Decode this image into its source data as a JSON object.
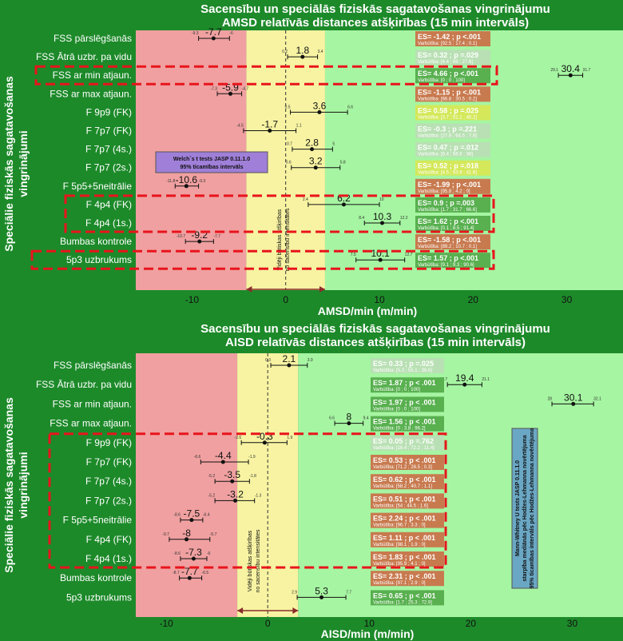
{
  "chart_data": [
    {
      "type": "scatter",
      "title_line1": "Sacensību un speciālās fiziskās sagatavošanas vingrinājumu",
      "title_line2": "AMSD relatīvās distances atšķirības (15 min intervāls)",
      "xlabel": "AMSD/min (m/min)",
      "ylabel_line1": "Speciālie fiziskās sagatavošanas",
      "ylabel_line2": "vingrinājumi",
      "xlim": [
        -16,
        36
      ],
      "xticks": [
        -10,
        0,
        10,
        20,
        30
      ],
      "tick_labels": [
        "-10",
        "0",
        "10",
        "20",
        "30"
      ],
      "zones": [
        {
          "from": -16,
          "to": -4.2,
          "color": "#f0a0a0"
        },
        {
          "from": -4.2,
          "to": 4.2,
          "color": "#f7f3a2"
        },
        {
          "from": 4.2,
          "to": 36,
          "color": "#a6f5a2"
        }
      ],
      "band_text_line1": "Vidēji būtiskas atšķirības",
      "band_text_line2": "no sacensību intensitātes",
      "method_line1": "Welch`s t tests JASP 0.11.1.0",
      "method_line2": "95% ticamības intervāls",
      "categories": [
        "FSS pārslēgšanās",
        "FSS Ātrā uzbr. pa vidu",
        "FSS ar min atjaun.",
        "FSS ar max atjaun.",
        "F 9p9 (FK)",
        "F 7p7 (FK)",
        "F 7p7 (4s.)",
        "F 7p7 (2s.)",
        "F 5p5+5neitrālie",
        "F 4p4 (FK)",
        "F 4p4 (1s.)",
        "Bumbas kontrole",
        "5p3 uzbrukums"
      ],
      "points": [
        {
          "value": -7.7,
          "label": "-7.7",
          "lo": -9.3,
          "hi": -6,
          "lo_label": "-9.3",
          "hi_label": "-6"
        },
        {
          "value": 1.8,
          "label": "1.8",
          "lo": 0.2,
          "hi": 3.4,
          "lo_label": "0.2",
          "hi_label": "3.4"
        },
        {
          "value": 30.4,
          "label": "30.4",
          "lo": 29.1,
          "hi": 31.7,
          "lo_label": "29.1",
          "hi_label": "31.7"
        },
        {
          "value": -5.9,
          "label": "-5.9",
          "lo": -7.3,
          "hi": -4.7,
          "lo_label": "-7.3",
          "hi_label": "-4.7"
        },
        {
          "value": 3.6,
          "label": "3.6",
          "lo": 0.5,
          "hi": 6.6,
          "lo_label": "0.5",
          "hi_label": "6.6"
        },
        {
          "value": -1.7,
          "label": "-1.7",
          "lo": -4.5,
          "hi": 1.1,
          "lo_label": "-4.5",
          "hi_label": "1.1"
        },
        {
          "value": 2.8,
          "label": "2.8",
          "lo": 0.7,
          "hi": 5,
          "lo_label": "0.7",
          "hi_label": "5"
        },
        {
          "value": 3.2,
          "label": "3.2",
          "lo": 0.6,
          "hi": 5.8,
          "lo_label": "0.6",
          "hi_label": "5.8"
        },
        {
          "value": -10.6,
          "label": "-10.6",
          "lo": -11.8,
          "hi": -9.3,
          "lo_label": "-11.8",
          "hi_label": "-9.3"
        },
        {
          "value": 6.2,
          "label": "6.2",
          "lo": 2.4,
          "hi": 10,
          "lo_label": "2.4",
          "hi_label": "10"
        },
        {
          "value": 10.3,
          "label": "10.3",
          "lo": 8.4,
          "hi": 12.2,
          "lo_label": "8.4",
          "hi_label": "12.2"
        },
        {
          "value": -9.2,
          "label": "-9.2",
          "lo": -10.7,
          "hi": -7.7,
          "lo_label": "-10.7",
          "hi_label": "-7.7"
        },
        {
          "value": 10.1,
          "label": "10.1",
          "lo": 7.5,
          "hi": 12.7,
          "lo_label": "7.5",
          "hi_label": "12.7"
        }
      ],
      "es_boxes": [
        {
          "es": "ES= -1.42 ; p <.001",
          "prob": "Varbūtība: [92.5 ; 17.4 ; 0.1]",
          "color": "#c87a4f"
        },
        {
          "es": "ES= 0.32 ; p =.029",
          "prob": "Varbūtība: [6.4 ; 66 ; 27.6]",
          "color": "#b9e0b4"
        },
        {
          "es": "ES= 4.66 ; p <.001",
          "prob": "Varbūtība: [0 ; 0 ; 100]",
          "color": "#58b04f"
        },
        {
          "es": "ES= -1.15 ; p <.001",
          "prob": "Varbūtība: [66.8 ; 30.5 ; 0.2]",
          "color": "#c87a4f"
        },
        {
          "es": "ES= 0.58 ; p =.025",
          "prob": "Varbūtība: [3.7 ; 51.1 ; 45.2]",
          "color": "#d4e85a"
        },
        {
          "es": "ES= -0.3 ; p =.221",
          "prob": "Varbūtība: [27.8 ; 64.5 ; 7.8]",
          "color": "#b9e0b4"
        },
        {
          "es": "ES= 0.47 ; p =.012",
          "prob": "Varbūtība: [6.4 ; 56.6 ; 38]",
          "color": "#b9e0b4"
        },
        {
          "es": "ES= 0.52 ; p =.018",
          "prob": "Varbūtība: [4.5 ; 53.9 ; 41.6]",
          "color": "#d4e85a"
        },
        {
          "es": "ES= -1.99 ; p <.001",
          "prob": "Varbūtība: [95.8 ; 4.2 ; 0]",
          "color": "#c87a4f"
        },
        {
          "es": "ES= 0.9 ; p =.003",
          "prob": "Varbūtība: [1.7 ; 31.7 ; 66.6]",
          "color": "#58b04f"
        },
        {
          "es": "ES= 1.62 ; p <.001",
          "prob": "Varbūtība: [0.1 ; 8.5 ; 91.4]",
          "color": "#58b04f"
        },
        {
          "es": "ES= -1.58 ; p <.001",
          "prob": "Varbūtība: [89.2 ; 10.7 ; 0.1]",
          "color": "#c87a4f"
        },
        {
          "es": "ES= 1.57 ; p <.001",
          "prob": "Varbūtība: [9.1 ; 9.3 ; 90.6]",
          "color": "#58b04f"
        }
      ]
    },
    {
      "type": "scatter",
      "title_line1": "Sacensību un speciālās fiziskās sagatavošanas vingrinājumu",
      "title_line2": "AISD relatīvās distances atšķirības (15 min intervāls)",
      "xlabel": "AISD/min (m/min)",
      "ylabel_line1": "Speciālie fiziskās sagatavošanas",
      "ylabel_line2": "vingrinājumi",
      "xlim": [
        -13,
        35
      ],
      "xticks": [
        -10,
        0,
        10,
        20,
        30
      ],
      "tick_labels": [
        "-10",
        "0",
        "10",
        "20",
        "30"
      ],
      "zones": [
        {
          "from": -13,
          "to": -3,
          "color": "#f0a0a0"
        },
        {
          "from": -3,
          "to": 3,
          "color": "#f7f3a2"
        },
        {
          "from": 3,
          "to": 35,
          "color": "#a6f5a2"
        }
      ],
      "band_text_line1": "Vidēji būtiskas atšķirības",
      "band_text_line2": "no sacensību intensitātes",
      "method_line1": "Mann-Whitney U tests JASP 0.11.1.0",
      "method_line2": "starpība mediānās pēc Hodžes-Lehmanna novērtējuma",
      "method_line3": "95% ticamības intervāls pēc Hodžes-Lehmanna novērtējuma",
      "categories": [
        "FSS pārslēgšanās",
        "FSS Ātrā uzbr. pa vidu",
        "FSS ar min atjaun.",
        "FSS ar max atjaun.",
        "F 9p9 (FK)",
        "F 7p7 (FK)",
        "F 7p7 (4s.)",
        "F 7p7 (2s.)",
        "F 5p5+5neitrālie",
        "F 4p4 (FK)",
        "F 4p4 (1s.)",
        "Bumbas kontrole",
        "5p3 uzbrukums"
      ],
      "points": [
        {
          "value": 2.1,
          "label": "2.1",
          "lo": 0.3,
          "hi": 3.9,
          "lo_label": "0.3",
          "hi_label": "3.9"
        },
        {
          "value": 19.4,
          "label": "19.4",
          "lo": 17.7,
          "hi": 21.1,
          "lo_label": "17.7",
          "hi_label": "21.1"
        },
        {
          "value": 30.1,
          "label": "30.1",
          "lo": 28,
          "hi": 32.1,
          "lo_label": "28",
          "hi_label": "32.1"
        },
        {
          "value": 8,
          "label": "8",
          "lo": 6.6,
          "hi": 9.4,
          "lo_label": "6.6",
          "hi_label": "9.4"
        },
        {
          "value": -0.3,
          "label": "-0.3",
          "lo": -2.6,
          "hi": 1.9,
          "lo_label": "-2.6",
          "hi_label": "1.9"
        },
        {
          "value": -4.4,
          "label": "-4.4",
          "lo": -6.6,
          "hi": -1.9,
          "lo_label": "-6.6",
          "hi_label": "-1.9"
        },
        {
          "value": -3.5,
          "label": "-3.5",
          "lo": -5.2,
          "hi": -1.8,
          "lo_label": "-5.2",
          "hi_label": "-1.8"
        },
        {
          "value": -3.2,
          "label": "-3.2",
          "lo": -5.2,
          "hi": -1.3,
          "lo_label": "-5.2",
          "hi_label": "-1.3"
        },
        {
          "value": -7.5,
          "label": "-7.5",
          "lo": -8.6,
          "hi": -6.4,
          "lo_label": "-8.6",
          "hi_label": "-6.4"
        },
        {
          "value": -8,
          "label": "-8",
          "lo": -9.7,
          "hi": -5.7,
          "lo_label": "-9.7",
          "hi_label": "-5.7"
        },
        {
          "value": -7.3,
          "label": "-7.3",
          "lo": -8.6,
          "hi": -6,
          "lo_label": "-8.6",
          "hi_label": "-6"
        },
        {
          "value": -7.7,
          "label": "-7.7",
          "lo": -8.7,
          "hi": -6.5,
          "lo_label": "-8.7",
          "hi_label": "-6.5"
        },
        {
          "value": 5.3,
          "label": "5.3",
          "lo": 2.9,
          "hi": 7.7,
          "lo_label": "2.9",
          "hi_label": "7.7"
        }
      ],
      "es_boxes": [
        {
          "es": "ES= 0.33 ; p =.025",
          "prob": "Varbūtība: [5.3 ; 55.1 ; 39.6]",
          "color": "#b9e0b4"
        },
        {
          "es": "ES= 1.87 ; p < .001",
          "prob": "Varbūtība: [0 ; 0 ; 100]",
          "color": "#58b04f"
        },
        {
          "es": "ES= 1.97 ; p < .001",
          "prob": "Varbūtība: [0 ; 0 ; 100]",
          "color": "#58b04f"
        },
        {
          "es": "ES= 1.56 ; p < .001",
          "prob": "Varbūtība: [0 ; 3.8 ; 96.2]",
          "color": "#58b04f"
        },
        {
          "es": "ES= 0.05 ; p =.762",
          "prob": "Varbūtība: [16.4 ; 72.2 ; 11.4]",
          "color": "#b9e0b4"
        },
        {
          "es": "ES= 0.53 ; p < .001",
          "prob": "Varbūtība: [71.2 ; 28.5 ; 0.3]",
          "color": "#c87a4f"
        },
        {
          "es": "ES= 0.62 ; p < .001",
          "prob": "Varbūtība: [58.2 ; 40.7 ; 1.1]",
          "color": "#c87a4f"
        },
        {
          "es": "ES= 0.51 ; p < .001",
          "prob": "Varbūtība: [54 ; 44.5 ; 1.6]",
          "color": "#c87a4f"
        },
        {
          "es": "ES= 2.24 ; p < .001",
          "prob": "Varbūtība: [96.7 ; 3.3 ; 0]",
          "color": "#c87a4f"
        },
        {
          "es": "ES= 1.11 ; p < .001",
          "prob": "Varbūtība: [98.1 ; 1.9 ; 0]",
          "color": "#c87a4f"
        },
        {
          "es": "ES= 1.83 ; p < .001",
          "prob": "Varbūtība: [95.9 ; 4.1 ; 0]",
          "color": "#c87a4f"
        },
        {
          "es": "ES= 2.31 ; p < .001",
          "prob": "Varbūtība: [97.1 ; 2.9 ; 0]",
          "color": "#c87a4f"
        },
        {
          "es": "ES= 0.65 ; p < .001",
          "prob": "Varbūtība: [1.7 ; 25.3 ; 72.9]",
          "color": "#58b04f"
        }
      ]
    }
  ]
}
